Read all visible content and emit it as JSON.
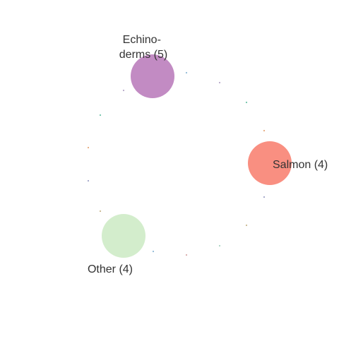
{
  "nodes": [
    {
      "id": "echinoderms",
      "label_lines": [
        "Echino-",
        "derms (5)"
      ],
      "color": "#C28BC3"
    },
    {
      "id": "salmon",
      "label_lines": [
        "Salmon (4)"
      ],
      "color": "#F98F81"
    },
    {
      "id": "other",
      "label_lines": [
        "Other (4)"
      ],
      "color": "#D3EDCC"
    }
  ],
  "minor_node_colors": [
    "#8FB9D6",
    "#B7A8C9",
    "#6FC2A8",
    "#E6A87A",
    "#9FA3C7",
    "#C9B78F",
    "#A9D3C0",
    "#D9A9A9"
  ]
}
